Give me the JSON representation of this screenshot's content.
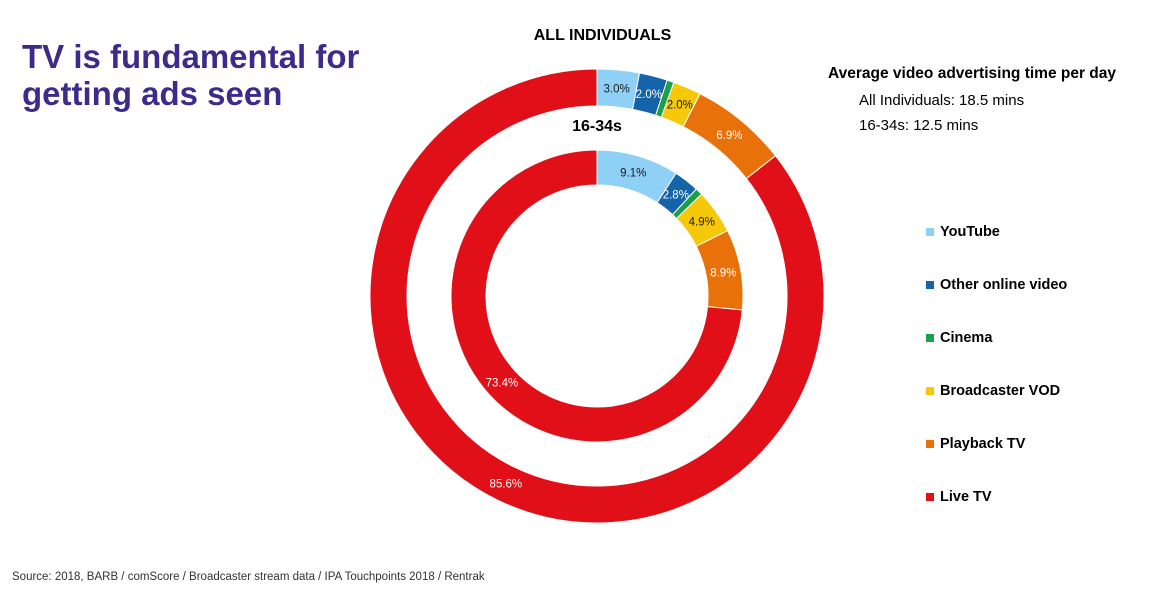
{
  "headline": "TV is fundamental for getting ads seen",
  "chart_data": {
    "type": "pie",
    "title": "ALL INDIVIDUALS",
    "categories": [
      "YouTube",
      "Other online video",
      "Cinema",
      "Broadcaster VOD",
      "Playback TV",
      "Live TV"
    ],
    "colors": [
      "#8fd0f7",
      "#1563a8",
      "#1aa04a",
      "#f5c90a",
      "#e8710a",
      "#e10f17"
    ],
    "label_colors": [
      "#1a1a1a",
      "#ffffff",
      "#1a1a1a",
      "#1a1a1a",
      "#ffffff",
      "#ffffff"
    ],
    "series": [
      {
        "ring": "outer",
        "values": [
          3.0,
          2.0,
          0.5,
          2.0,
          6.9,
          85.6
        ],
        "labels": [
          "3.0%",
          "2.0%",
          "",
          "2.0%",
          "6.9%",
          "85.6%"
        ]
      },
      {
        "ring": "inner",
        "name": "16-34s",
        "values": [
          9.1,
          2.8,
          0.8,
          4.9,
          8.9,
          73.4
        ],
        "labels": [
          "9.1%",
          "2.8%",
          "",
          "4.9%",
          "8.9%",
          "73.4%"
        ]
      }
    ],
    "legend_position": "right"
  },
  "info": {
    "heading": "Average video advertising time per day",
    "lines": [
      "All Individuals: 18.5 mins",
      "16-34s: 12.5 mins"
    ]
  },
  "source": "Source: 2018, BARB / comScore / Broadcaster stream data  / IPA Touchpoints 2018 / Rentrak"
}
